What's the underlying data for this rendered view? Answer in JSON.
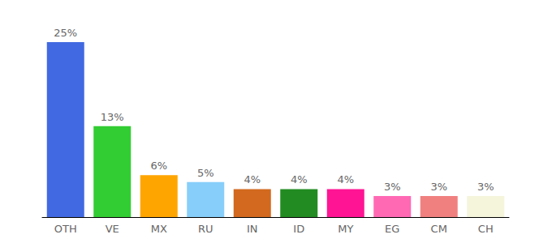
{
  "chart_data": {
    "type": "bar",
    "categories": [
      "OTH",
      "VE",
      "MX",
      "RU",
      "IN",
      "ID",
      "MY",
      "EG",
      "CM",
      "CH"
    ],
    "values": [
      25,
      13,
      6,
      5,
      4,
      4,
      4,
      3,
      3,
      3
    ],
    "value_labels": [
      "25%",
      "13%",
      "6%",
      "5%",
      "4%",
      "4%",
      "4%",
      "3%",
      "3%",
      "3%"
    ],
    "colors": [
      "#4169e1",
      "#32cd32",
      "#ffa500",
      "#87cefa",
      "#d2691e",
      "#228b22",
      "#ff1493",
      "#ff69b4",
      "#f08080",
      "#f5f5dc"
    ],
    "ylim": [
      0,
      25
    ],
    "grid": false,
    "data_labels": true,
    "tick_labels": "x"
  }
}
